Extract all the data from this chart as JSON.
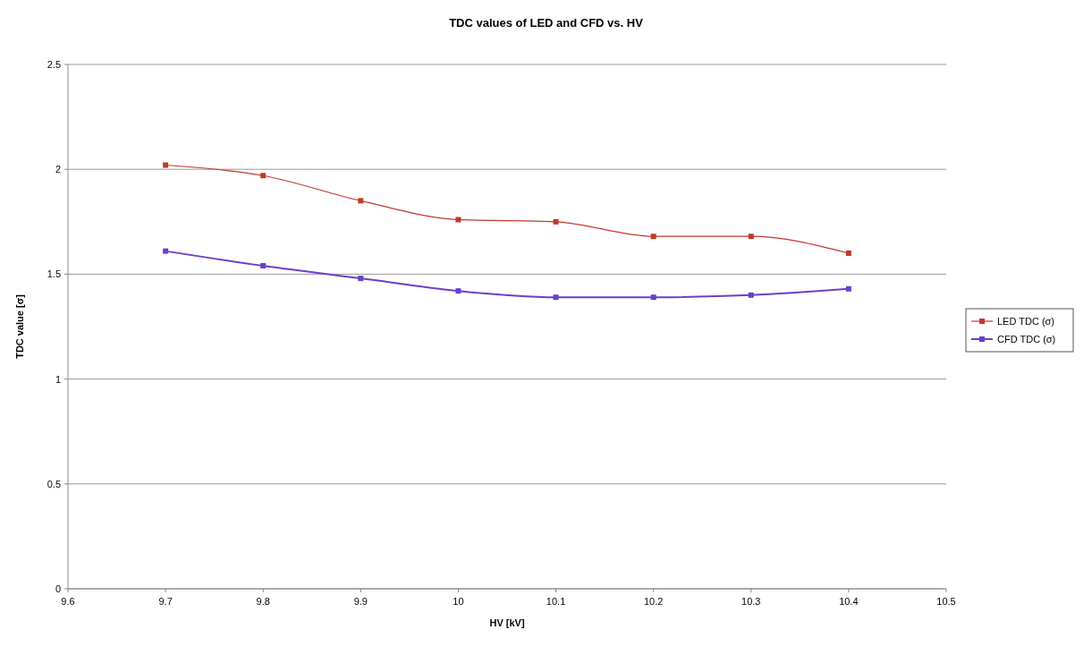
{
  "chart_data": {
    "type": "line",
    "title": "TDC values of LED and CFD vs. HV",
    "xlabel": "HV [kV]",
    "ylabel": "TDC value [σ]",
    "x": [
      9.7,
      9.8,
      9.9,
      10,
      10.1,
      10.2,
      10.3,
      10.4
    ],
    "series": [
      {
        "name": "LED TDC (σ)",
        "color": "#c0392b",
        "values": [
          2.02,
          1.97,
          1.85,
          1.76,
          1.75,
          1.68,
          1.68,
          1.6
        ]
      },
      {
        "name": "CFD TDC (σ)",
        "color": "#6a3fc8",
        "values": [
          1.61,
          1.54,
          1.48,
          1.42,
          1.39,
          1.39,
          1.4,
          1.43
        ]
      }
    ],
    "xlim": [
      9.6,
      10.5
    ],
    "xticks": [
      9.6,
      9.7,
      9.8,
      9.9,
      10,
      10.1,
      10.2,
      10.3,
      10.4,
      10.5
    ],
    "ylim": [
      0,
      2.5
    ],
    "yticks": [
      0,
      0.5,
      1,
      1.5,
      2,
      2.5
    ],
    "grid": "y",
    "legend": "right",
    "marker": "square",
    "line_style": "solid"
  }
}
